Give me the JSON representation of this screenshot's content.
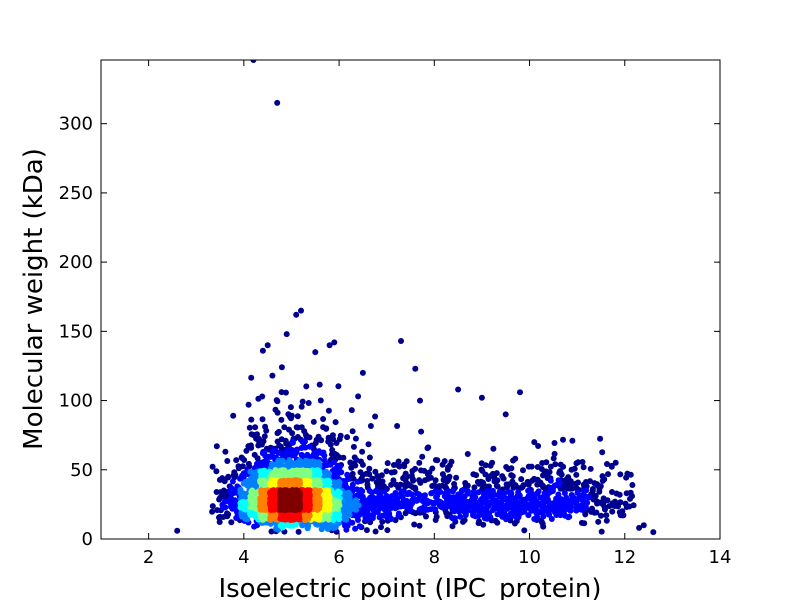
{
  "chart_data": {
    "type": "scatter",
    "title": "",
    "xlabel": "Isoelectric point (IPC_protein)",
    "ylabel": "Molecular weight (kDa)",
    "xlim": [
      1,
      14
    ],
    "ylim": [
      0,
      346
    ],
    "x_ticks": [
      2,
      4,
      6,
      8,
      10,
      12,
      14
    ],
    "y_ticks": [
      0,
      50,
      100,
      150,
      200,
      250,
      300
    ],
    "x_tick_labels": [
      "2",
      "4",
      "6",
      "8",
      "10",
      "12",
      "14"
    ],
    "y_tick_labels": [
      "0",
      "50",
      "100",
      "150",
      "200",
      "250",
      "300"
    ],
    "grid": false,
    "legend": "none",
    "color_scale": "point density (jet: blue low → red high)",
    "colors": [
      "#00008f",
      "#0000ff",
      "#0080ff",
      "#00ffff",
      "#80ff80",
      "#ffff00",
      "#ff8000",
      "#ff0000",
      "#800000"
    ],
    "clusters": [
      {
        "center": [
          4.9,
          27
        ],
        "spread": [
          0.55,
          12
        ],
        "count": 2200
      },
      {
        "center": [
          5.1,
          45
        ],
        "spread": [
          0.6,
          20
        ],
        "count": 500
      },
      {
        "center": [
          5.8,
          20
        ],
        "spread": [
          0.5,
          10
        ],
        "count": 300
      },
      {
        "center": [
          8.5,
          27
        ],
        "spread": [
          1.0,
          12
        ],
        "count": 420
      },
      {
        "center": [
          10.6,
          28
        ],
        "spread": [
          0.9,
          13
        ],
        "count": 420
      },
      {
        "center": [
          7.0,
          30
        ],
        "spread": [
          0.6,
          12
        ],
        "count": 150
      }
    ],
    "outliers": [
      [
        4.2,
        346
      ],
      [
        4.7,
        315
      ],
      [
        5.2,
        165
      ],
      [
        5.1,
        162
      ],
      [
        4.9,
        148
      ],
      [
        4.5,
        140
      ],
      [
        4.4,
        136
      ],
      [
        5.9,
        142
      ],
      [
        5.8,
        140
      ],
      [
        7.3,
        143
      ],
      [
        7.6,
        123
      ],
      [
        6.5,
        120
      ],
      [
        7.7,
        100
      ],
      [
        8.5,
        108
      ],
      [
        9.0,
        102
      ],
      [
        9.8,
        106
      ],
      [
        10.1,
        70
      ],
      [
        10.9,
        71
      ],
      [
        9.5,
        90
      ],
      [
        2.6,
        6
      ],
      [
        12.6,
        5
      ],
      [
        12.4,
        10
      ],
      [
        12.3,
        8
      ],
      [
        4.1,
        97
      ],
      [
        6.4,
        103
      ],
      [
        5.5,
        135
      ],
      [
        4.6,
        118
      ],
      [
        4.8,
        124
      ]
    ]
  }
}
